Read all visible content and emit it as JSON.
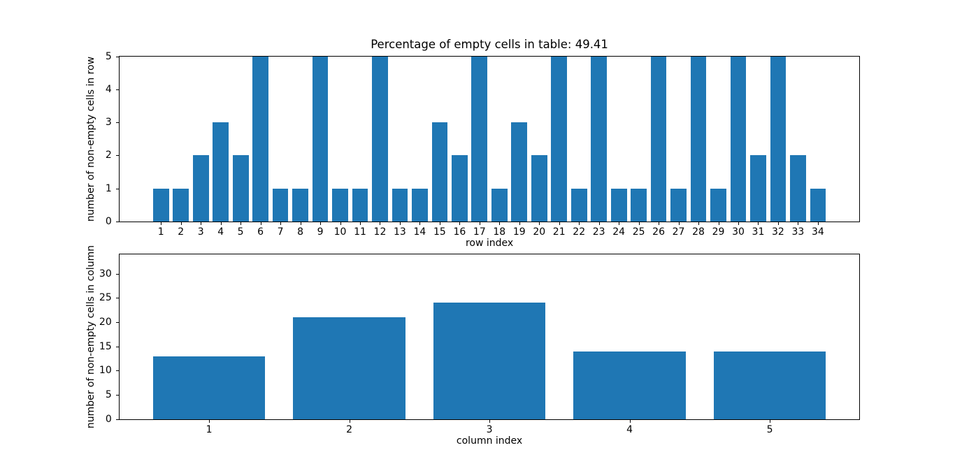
{
  "figure": {
    "background_color": "#ffffff",
    "bar_color": "#1f77b4",
    "axis_color": "#000000",
    "text_color": "#000000"
  },
  "chart_data": [
    {
      "type": "bar",
      "title": "Percentage of empty cells in table: 49.41",
      "xlabel": "row index",
      "ylabel": "number of non-empty cells in row",
      "x": [
        1,
        2,
        3,
        4,
        5,
        6,
        7,
        8,
        9,
        10,
        11,
        12,
        13,
        14,
        15,
        16,
        17,
        18,
        19,
        20,
        21,
        22,
        23,
        24,
        25,
        26,
        27,
        28,
        29,
        30,
        31,
        32,
        33,
        34
      ],
      "values": [
        1,
        1,
        2,
        3,
        2,
        5,
        1,
        1,
        5,
        1,
        1,
        5,
        1,
        1,
        3,
        2,
        5,
        1,
        3,
        2,
        5,
        1,
        5,
        1,
        1,
        5,
        1,
        5,
        1,
        5,
        2,
        5,
        2,
        1
      ],
      "xticks": [
        1,
        2,
        3,
        4,
        5,
        6,
        7,
        8,
        9,
        10,
        11,
        12,
        13,
        14,
        15,
        16,
        17,
        18,
        19,
        20,
        21,
        22,
        23,
        24,
        25,
        26,
        27,
        28,
        29,
        30,
        31,
        32,
        33,
        34
      ],
      "yticks": [
        0,
        1,
        2,
        3,
        4,
        5
      ],
      "xlim": [
        -1.09,
        36.09
      ],
      "ylim": [
        0,
        5
      ],
      "bar_width": 0.8,
      "grid": false,
      "legend": null
    },
    {
      "type": "bar",
      "title": "",
      "xlabel": "column index",
      "ylabel": "number of non-empty cells in column",
      "x": [
        1,
        2,
        3,
        4,
        5
      ],
      "values": [
        13,
        21,
        24,
        14,
        14
      ],
      "xticks": [
        1,
        2,
        3,
        4,
        5
      ],
      "yticks": [
        0,
        5,
        10,
        15,
        20,
        25,
        30
      ],
      "xlim": [
        0.36,
        5.64
      ],
      "ylim": [
        0,
        34
      ],
      "bar_width": 0.8,
      "grid": false,
      "legend": null
    }
  ]
}
